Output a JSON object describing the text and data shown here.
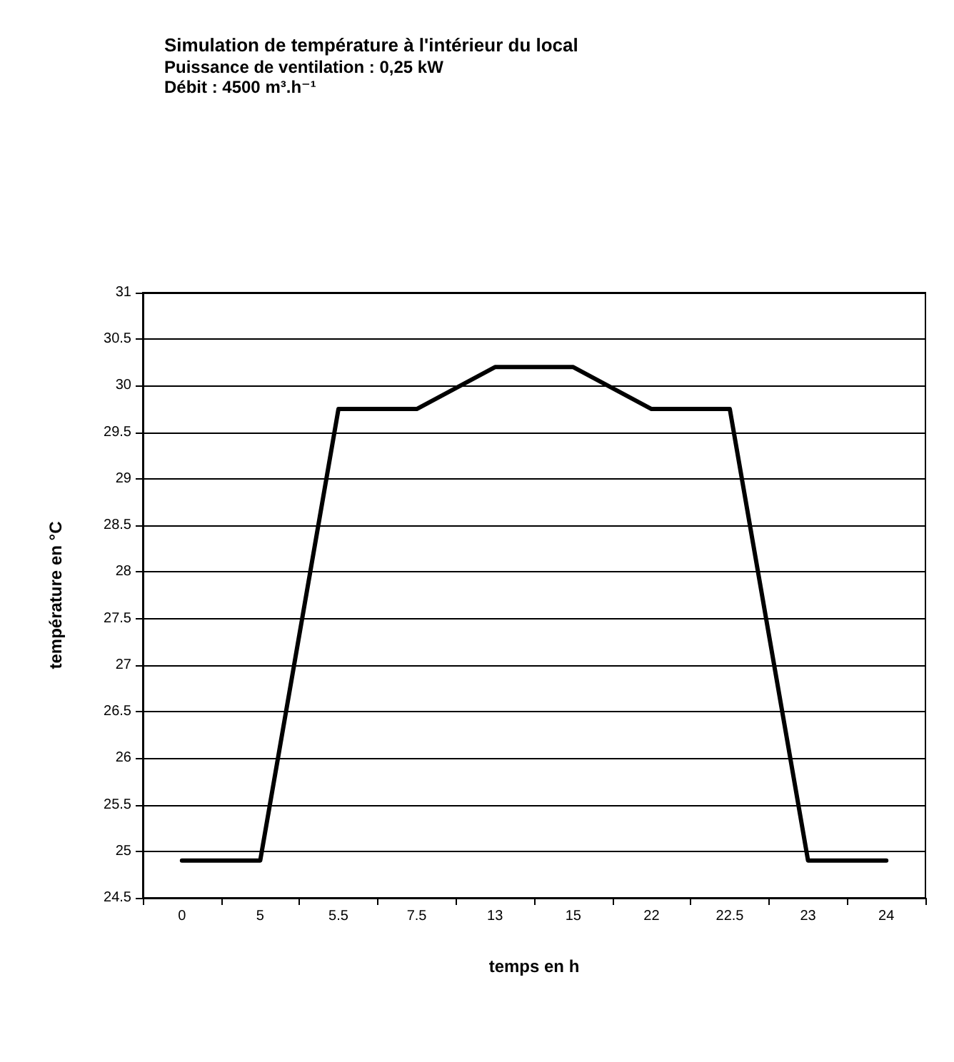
{
  "chart_data": {
    "type": "line",
    "title": "Simulation de température à l'intérieur du local",
    "subtitle": "Puissance de ventilation : 0,25 kW\nDébit : 4500 m³.h⁻¹",
    "xlabel": "temps en h",
    "ylabel": "température en °C",
    "categories": [
      "0",
      "5",
      "5.5",
      "7.5",
      "13",
      "15",
      "22",
      "22.5",
      "23",
      "24"
    ],
    "series": [
      {
        "color": "#000000",
        "values": [
          24.9,
          24.9,
          29.75,
          29.75,
          30.2,
          30.2,
          29.75,
          29.75,
          24.9,
          24.9
        ]
      }
    ],
    "ylim": [
      24.5,
      31
    ],
    "yticks": [
      24.5,
      25,
      25.5,
      26,
      26.5,
      27,
      27.5,
      28,
      28.5,
      29,
      29.5,
      30,
      30.5,
      31
    ],
    "grid": "y",
    "marker": "none",
    "line_style": "solid"
  }
}
